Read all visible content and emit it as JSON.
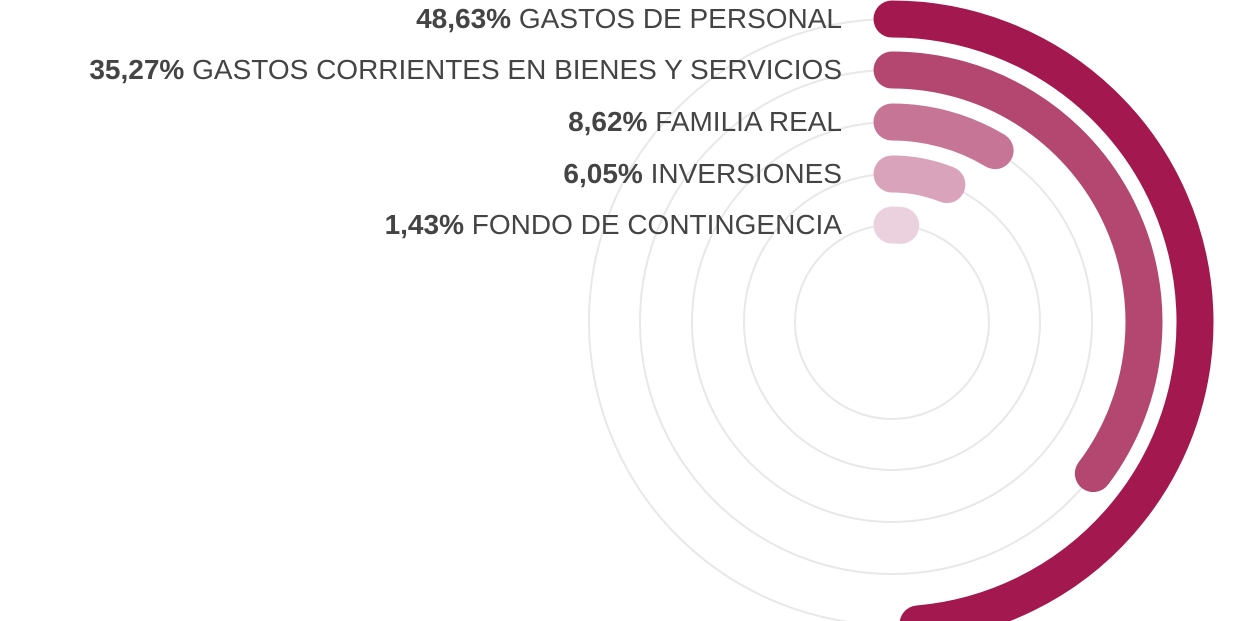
{
  "chart_data": {
    "type": "radial-bar",
    "unit": "%",
    "max": 100,
    "series": [
      {
        "label": "GASTOS DE PERSONAL",
        "value": 48.63,
        "value_text": "48,63%",
        "color": "#a3184f"
      },
      {
        "label": "GASTOS CORRIENTES EN BIENES Y SERVICIOS",
        "value": 35.27,
        "value_text": "35,27%",
        "color": "#b34770"
      },
      {
        "label": "FAMILIA REAL",
        "value": 8.62,
        "value_text": "8,62%",
        "color": "#c67596"
      },
      {
        "label": "INVERSIONES",
        "value": 6.05,
        "value_text": "6,05%",
        "color": "#d9a3bb"
      },
      {
        "label": "FONDO DE CONTINGENCIA",
        "value": 1.43,
        "value_text": "1,43%",
        "color": "#ebd1dd"
      }
    ],
    "track_color": "#e8e8e8"
  }
}
